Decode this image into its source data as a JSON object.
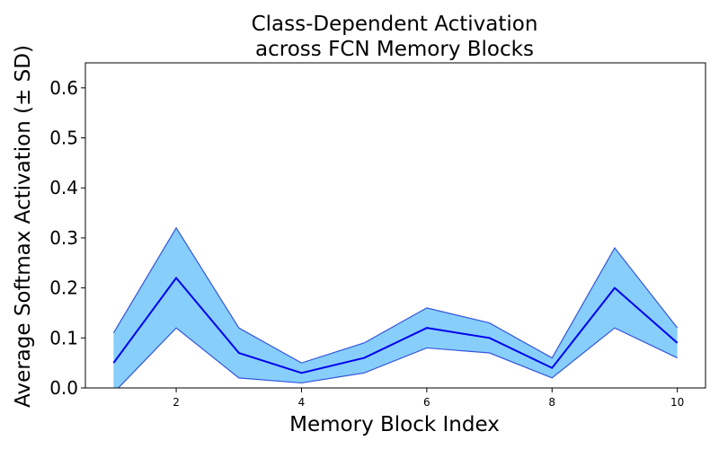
{
  "chart_data": {
    "type": "line",
    "title": [
      "Class-Dependent Activation",
      "across FCN Memory Blocks"
    ],
    "xlabel": "Memory Block Index",
    "ylabel": "Average Softmax Activation (± SD)",
    "x": [
      1,
      2,
      3,
      4,
      5,
      6,
      7,
      8,
      9,
      10
    ],
    "series": [
      {
        "values": [
          0.05,
          0.22,
          0.07,
          0.03,
          0.06,
          0.12,
          0.1,
          0.04,
          0.2,
          0.09
        ],
        "lower": [
          -0.01,
          0.12,
          0.02,
          0.01,
          0.03,
          0.08,
          0.07,
          0.02,
          0.12,
          0.06
        ],
        "upper": [
          0.11,
          0.32,
          0.12,
          0.05,
          0.09,
          0.16,
          0.13,
          0.06,
          0.28,
          0.12
        ],
        "color": "#0000ee",
        "band_color": "#87cefa",
        "band_edge_color": "#3355dd"
      }
    ],
    "xlim": [
      0.55,
      10.45
    ],
    "ylim": [
      0,
      0.65
    ],
    "xticks": [
      "2",
      "4",
      "6",
      "8",
      "10"
    ],
    "yticks": [
      "0.0",
      "0.1",
      "0.2",
      "0.3",
      "0.4",
      "0.5",
      "0.6"
    ],
    "grid": false
  }
}
